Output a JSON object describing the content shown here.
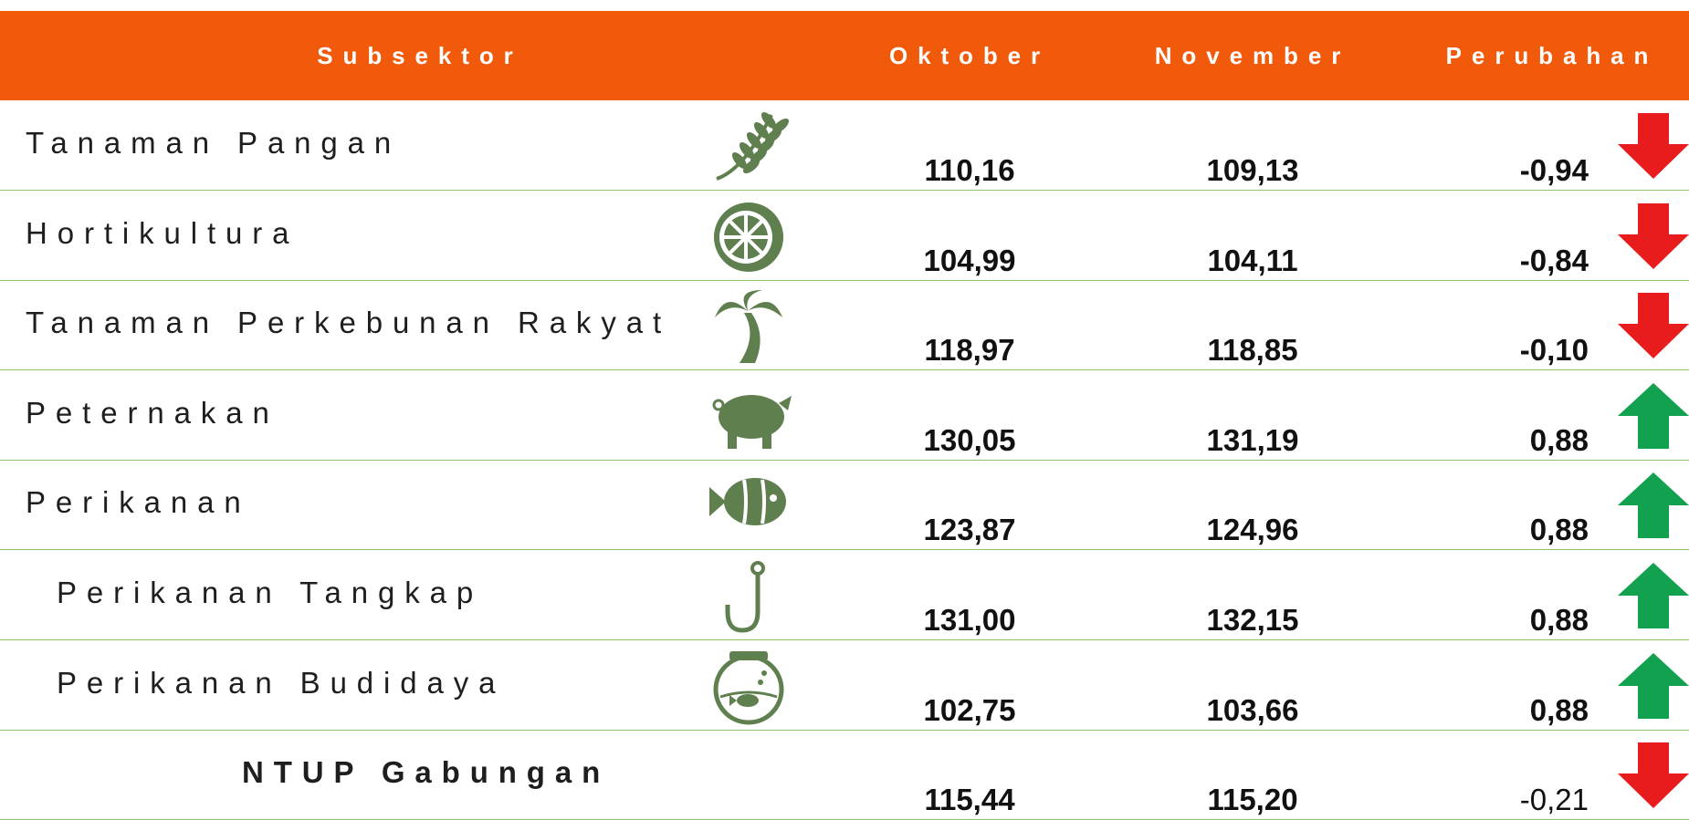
{
  "table": {
    "header": [
      "Subsektor",
      "Oktober",
      "November",
      "Perubahan"
    ],
    "rows": [
      [
        "Tanaman Pangan",
        "110,16",
        "109,13",
        "-0,94"
      ],
      [
        "Hortikultura",
        "104,99",
        "104,11",
        "-0,84"
      ],
      [
        "Tanaman Perkebunan Rakyat",
        "118,97",
        "118,85",
        "-0,10"
      ],
      [
        "Peternakan",
        "130,05",
        "131,19",
        "0,88"
      ],
      [
        "Perikanan",
        "123,87",
        "124,96",
        "0,88"
      ],
      [
        "Perikanan Tangkap",
        "131,00",
        "132,15",
        "0,88"
      ],
      [
        "Perikanan Budidaya",
        "102,75",
        "103,66",
        "0,88"
      ],
      [
        "NTUP Gabungan",
        "115,44",
        "115,20",
        "-0,21"
      ]
    ]
  }
}
